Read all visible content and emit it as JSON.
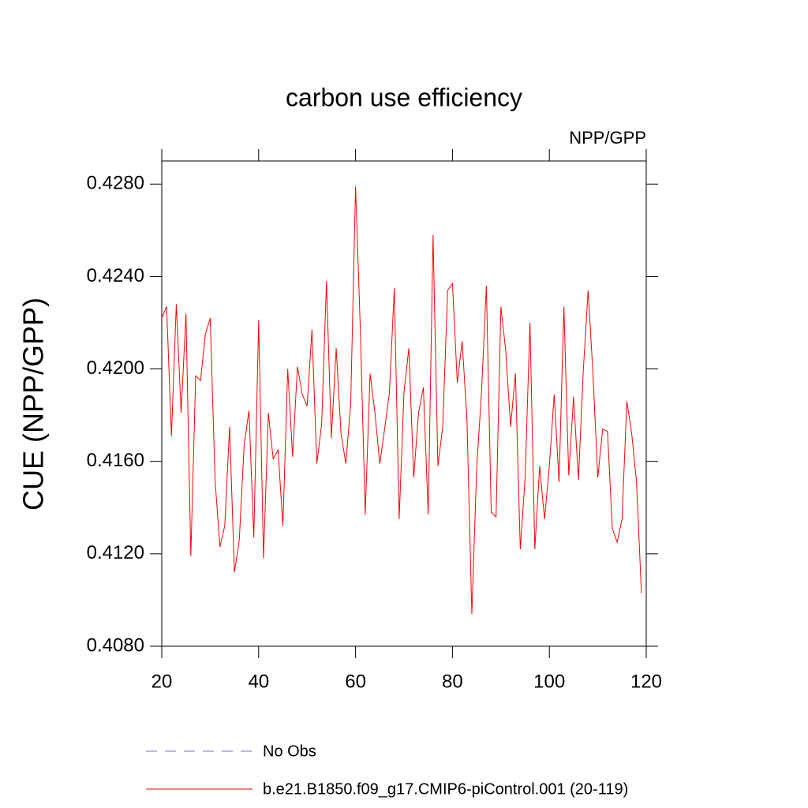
{
  "chart_data": {
    "type": "line",
    "title": "carbon use efficiency",
    "subtitle": "NPP/GPP",
    "y_label": "CUE  (NPP/GPP)",
    "x": [
      20,
      21,
      22,
      23,
      24,
      25,
      26,
      27,
      28,
      29,
      30,
      31,
      32,
      33,
      34,
      35,
      36,
      37,
      38,
      39,
      40,
      41,
      42,
      43,
      44,
      45,
      46,
      47,
      48,
      49,
      50,
      51,
      52,
      53,
      54,
      55,
      56,
      57,
      58,
      59,
      60,
      61,
      62,
      63,
      64,
      65,
      66,
      67,
      68,
      69,
      70,
      71,
      72,
      73,
      74,
      75,
      76,
      77,
      78,
      79,
      80,
      81,
      82,
      83,
      84,
      85,
      86,
      87,
      88,
      89,
      90,
      91,
      92,
      93,
      94,
      95,
      96,
      97,
      98,
      99,
      100,
      101,
      102,
      103,
      104,
      105,
      106,
      107,
      108,
      109,
      110,
      111,
      112,
      113,
      114,
      115,
      116,
      117,
      118,
      119
    ],
    "series": [
      {
        "name": "b.e21.B1850.f09_g17.CMIP6-piControl.001 (20-119)",
        "color": "#ff0000",
        "values": [
          0.4222,
          0.4227,
          0.4171,
          0.4228,
          0.4181,
          0.4224,
          0.4119,
          0.4197,
          0.4195,
          0.4215,
          0.4222,
          0.4152,
          0.4123,
          0.4132,
          0.4175,
          0.4112,
          0.4126,
          0.4167,
          0.4182,
          0.4127,
          0.4221,
          0.4118,
          0.4181,
          0.4161,
          0.4165,
          0.4132,
          0.42,
          0.4162,
          0.4201,
          0.4189,
          0.4184,
          0.4217,
          0.4159,
          0.4176,
          0.4238,
          0.417,
          0.4209,
          0.4172,
          0.4159,
          0.4185,
          0.4279,
          0.4216,
          0.4137,
          0.4198,
          0.4181,
          0.4159,
          0.4174,
          0.419,
          0.4235,
          0.4135,
          0.419,
          0.4209,
          0.4153,
          0.4181,
          0.4192,
          0.4137,
          0.4258,
          0.4158,
          0.4175,
          0.4234,
          0.4237,
          0.4194,
          0.4212,
          0.4178,
          0.4094,
          0.4157,
          0.419,
          0.4236,
          0.4138,
          0.4136,
          0.4227,
          0.4208,
          0.4175,
          0.4198,
          0.4122,
          0.4153,
          0.422,
          0.4122,
          0.4158,
          0.4135,
          0.4158,
          0.4189,
          0.4151,
          0.4227,
          0.4154,
          0.4188,
          0.4152,
          0.4199,
          0.4234,
          0.4198,
          0.4153,
          0.4174,
          0.4173,
          0.4131,
          0.4125,
          0.4135,
          0.4186,
          0.4172,
          0.4151,
          0.4103
        ]
      }
    ],
    "legend_extra": {
      "name": "No Obs",
      "color": "#7070d0",
      "style": "dashed"
    },
    "xlim": [
      20,
      120
    ],
    "xticks": [
      20,
      40,
      60,
      80,
      100,
      120
    ],
    "ylim": [
      0.408,
      0.429
    ],
    "yticks": [
      {
        "value": 0.408,
        "label": "0.4080"
      },
      {
        "value": 0.412,
        "label": "0.4120"
      },
      {
        "value": 0.416,
        "label": "0.4160"
      },
      {
        "value": 0.42,
        "label": "0.4200"
      },
      {
        "value": 0.424,
        "label": "0.4240"
      },
      {
        "value": 0.428,
        "label": "0.4280"
      }
    ],
    "grid": false
  }
}
